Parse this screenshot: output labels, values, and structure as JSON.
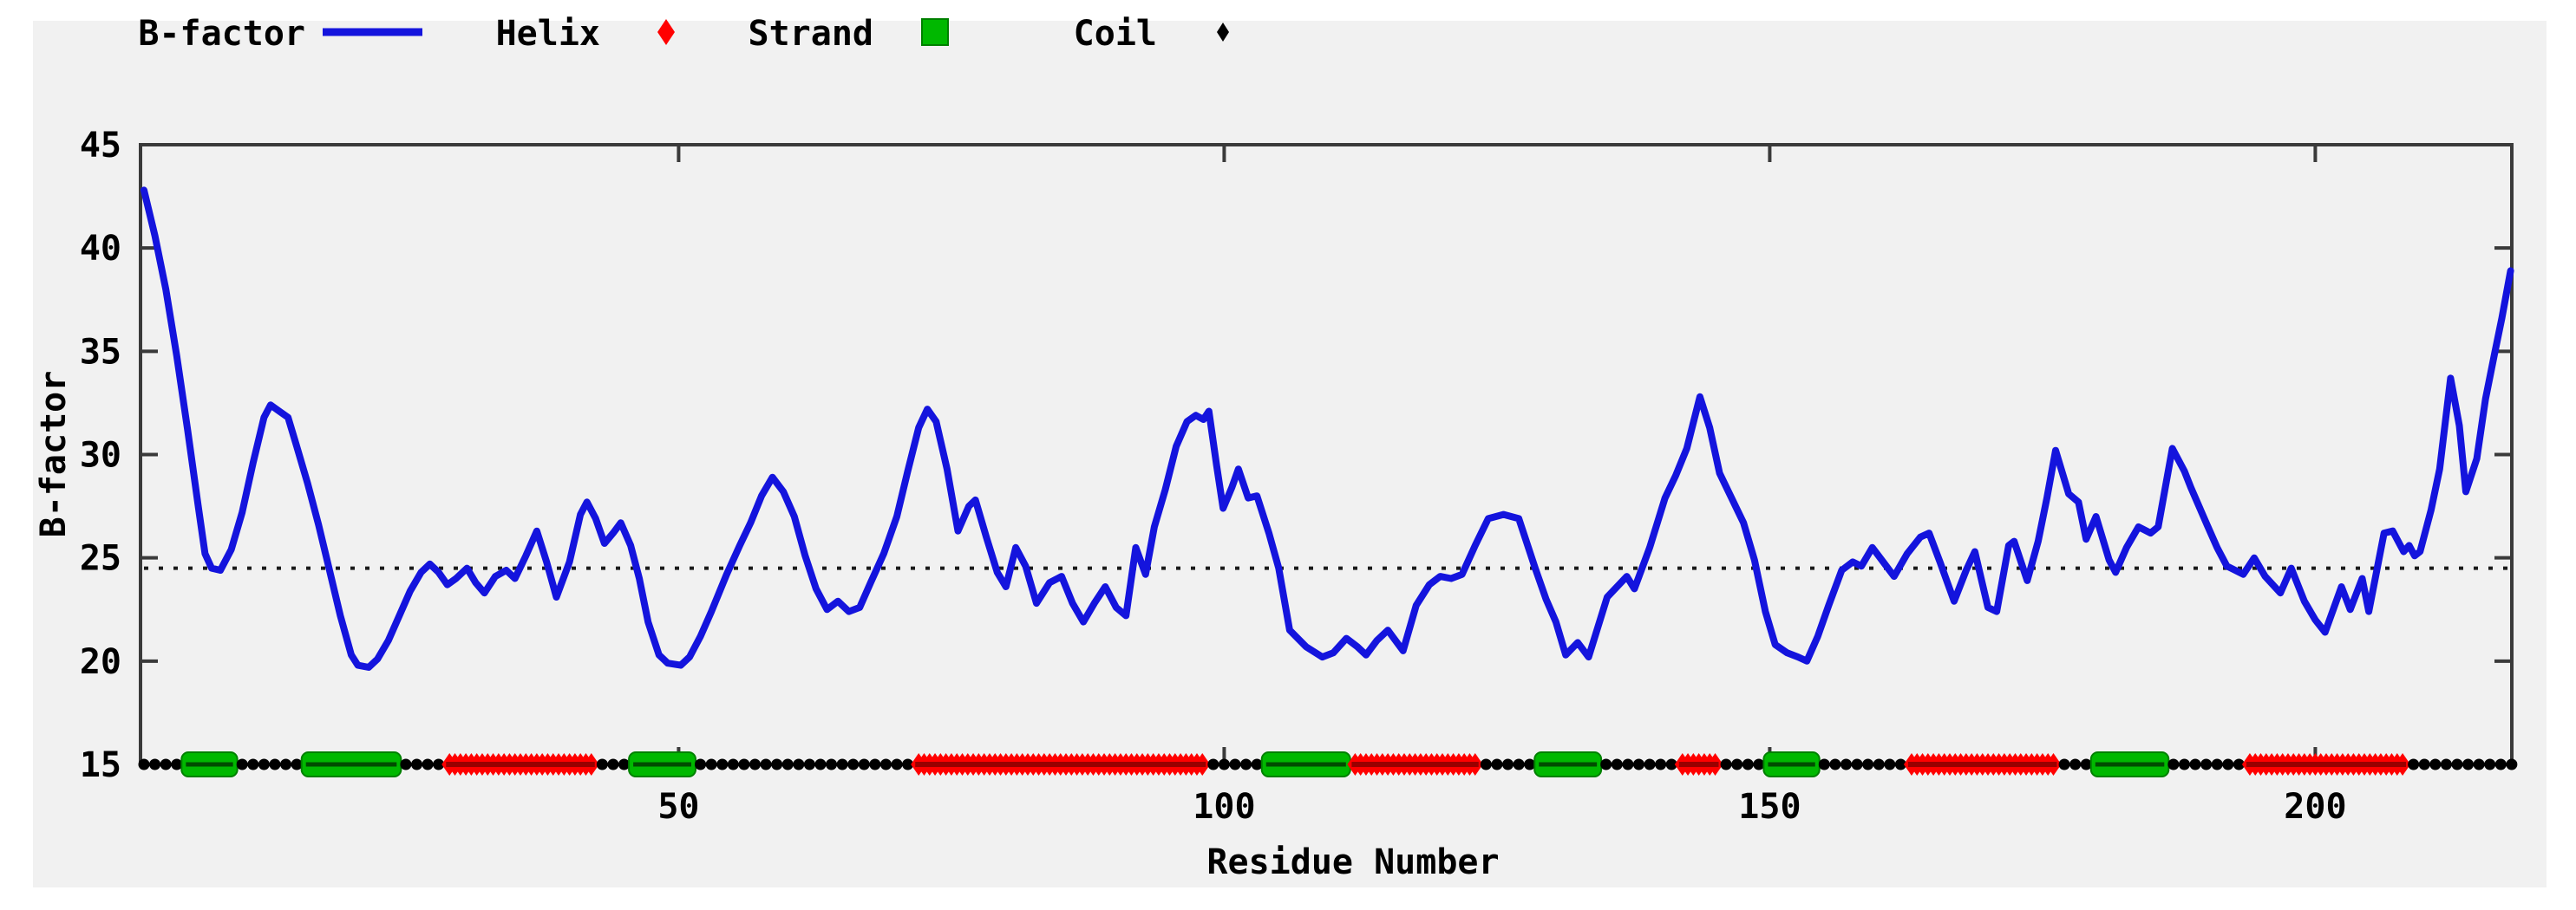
{
  "legend": {
    "items": [
      {
        "label": "B-factor",
        "marker": "line",
        "color": "#1414dd"
      },
      {
        "label": "Helix",
        "marker": "diamond",
        "color": "#ff0000"
      },
      {
        "label": "Strand",
        "marker": "square",
        "color": "#00b800"
      },
      {
        "label": "Coil",
        "marker": "dot",
        "color": "#000000"
      }
    ]
  },
  "axes": {
    "xlabel": "Residue Number",
    "ylabel": "B-factor",
    "yticks": [
      15,
      20,
      25,
      30,
      35,
      40,
      45
    ],
    "xticks": [
      50,
      100,
      150,
      200
    ]
  },
  "colors": {
    "curve": "#1414dd",
    "helix": "#ff0000",
    "helix_dark": "#990000",
    "strand": "#00b800",
    "strand_dark": "#004d00",
    "coil": "#000000",
    "border": "#3a3a3a",
    "panel_bg": "#f1f1f1",
    "mean_line": "#1a1a1a"
  },
  "chart_data": {
    "type": "line",
    "title": "",
    "xlabel": "Residue Number",
    "ylabel": "B-factor",
    "xlim": [
      1,
      218
    ],
    "ylim": [
      15,
      45
    ],
    "xticks": [
      50,
      100,
      150,
      200
    ],
    "yticks": [
      15,
      20,
      25,
      30,
      35,
      40,
      45
    ],
    "grid": false,
    "legend_position": "top-left",
    "average_line_y": 24.5,
    "series": [
      {
        "name": "B-factor",
        "points": [
          [
            1,
            42.8
          ],
          [
            2,
            40.6
          ],
          [
            3,
            38.0
          ],
          [
            4,
            34.8
          ],
          [
            5,
            31.2
          ],
          [
            6,
            27.4
          ],
          [
            6.6,
            25.2
          ],
          [
            7.2,
            24.5
          ],
          [
            8,
            24.4
          ],
          [
            9,
            25.4
          ],
          [
            10,
            27.2
          ],
          [
            11,
            29.6
          ],
          [
            12,
            31.8
          ],
          [
            12.6,
            32.4
          ],
          [
            13.4,
            32.1
          ],
          [
            14.2,
            31.8
          ],
          [
            15,
            30.4
          ],
          [
            16,
            28.6
          ],
          [
            17,
            26.6
          ],
          [
            18,
            24.4
          ],
          [
            19,
            22.2
          ],
          [
            20,
            20.3
          ],
          [
            20.6,
            19.8
          ],
          [
            21.6,
            19.7
          ],
          [
            22.4,
            20.1
          ],
          [
            23.4,
            21.0
          ],
          [
            24.4,
            22.2
          ],
          [
            25.4,
            23.4
          ],
          [
            26.4,
            24.3
          ],
          [
            27.2,
            24.7
          ],
          [
            28,
            24.3
          ],
          [
            28.8,
            23.7
          ],
          [
            29.6,
            24.0
          ],
          [
            30.6,
            24.5
          ],
          [
            31.4,
            23.8
          ],
          [
            32.2,
            23.3
          ],
          [
            33.2,
            24.1
          ],
          [
            34.2,
            24.4
          ],
          [
            35,
            24.0
          ],
          [
            36,
            25.1
          ],
          [
            37,
            26.3
          ],
          [
            37.9,
            24.8
          ],
          [
            38.8,
            23.1
          ],
          [
            40,
            24.8
          ],
          [
            41,
            27.1
          ],
          [
            41.6,
            27.7
          ],
          [
            42.4,
            26.9
          ],
          [
            43.2,
            25.7
          ],
          [
            44,
            26.2
          ],
          [
            44.7,
            26.7
          ],
          [
            45.6,
            25.6
          ],
          [
            46.4,
            24.0
          ],
          [
            47.2,
            21.9
          ],
          [
            48.2,
            20.3
          ],
          [
            49,
            19.9
          ],
          [
            50.2,
            19.8
          ],
          [
            51,
            20.2
          ],
          [
            52,
            21.2
          ],
          [
            53,
            22.4
          ],
          [
            54.4,
            24.2
          ],
          [
            55.6,
            25.6
          ],
          [
            56.6,
            26.7
          ],
          [
            57.6,
            28.0
          ],
          [
            58.6,
            28.9
          ],
          [
            59.6,
            28.2
          ],
          [
            60.6,
            27.0
          ],
          [
            61.6,
            25.1
          ],
          [
            62.6,
            23.5
          ],
          [
            63.6,
            22.5
          ],
          [
            64.6,
            22.9
          ],
          [
            65.6,
            22.4
          ],
          [
            66.6,
            22.6
          ],
          [
            67.6,
            23.8
          ],
          [
            68.8,
            25.2
          ],
          [
            70,
            27.0
          ],
          [
            71,
            29.2
          ],
          [
            72,
            31.3
          ],
          [
            72.8,
            32.2
          ],
          [
            73.6,
            31.6
          ],
          [
            74.6,
            29.3
          ],
          [
            75.6,
            26.3
          ],
          [
            76.6,
            27.5
          ],
          [
            77.2,
            27.8
          ],
          [
            78.2,
            26.0
          ],
          [
            79.2,
            24.3
          ],
          [
            80,
            23.6
          ],
          [
            80.9,
            25.5
          ],
          [
            81.8,
            24.6
          ],
          [
            82.8,
            22.8
          ],
          [
            84,
            23.8
          ],
          [
            85.1,
            24.1
          ],
          [
            86.1,
            22.8
          ],
          [
            87.1,
            21.9
          ],
          [
            88.1,
            22.8
          ],
          [
            89.1,
            23.6
          ],
          [
            90.1,
            22.6
          ],
          [
            91,
            22.2
          ],
          [
            91.9,
            25.5
          ],
          [
            92.8,
            24.2
          ],
          [
            93.6,
            26.5
          ],
          [
            94.6,
            28.3
          ],
          [
            95.6,
            30.4
          ],
          [
            96.6,
            31.6
          ],
          [
            97.4,
            31.9
          ],
          [
            98.1,
            31.7
          ],
          [
            98.6,
            32.1
          ],
          [
            99.3,
            29.5
          ],
          [
            99.9,
            27.4
          ],
          [
            100.7,
            28.4
          ],
          [
            101.3,
            29.3
          ],
          [
            102.2,
            27.9
          ],
          [
            103,
            28.0
          ],
          [
            104.1,
            26.2
          ],
          [
            105,
            24.5
          ],
          [
            106,
            21.5
          ],
          [
            107.5,
            20.7
          ],
          [
            109,
            20.2
          ],
          [
            110,
            20.4
          ],
          [
            111.2,
            21.1
          ],
          [
            112.2,
            20.7
          ],
          [
            113,
            20.3
          ],
          [
            114,
            21.0
          ],
          [
            115,
            21.5
          ],
          [
            116.4,
            20.5
          ],
          [
            117.6,
            22.7
          ],
          [
            118.8,
            23.7
          ],
          [
            119.8,
            24.1
          ],
          [
            120.8,
            24.0
          ],
          [
            121.8,
            24.2
          ],
          [
            123,
            25.6
          ],
          [
            124.2,
            26.9
          ],
          [
            125.6,
            27.1
          ],
          [
            127,
            26.9
          ],
          [
            128.5,
            24.5
          ],
          [
            129.5,
            23.0
          ],
          [
            130.4,
            21.9
          ],
          [
            131.3,
            20.3
          ],
          [
            132.4,
            20.9
          ],
          [
            133.4,
            20.2
          ],
          [
            135.1,
            23.1
          ],
          [
            136.9,
            24.1
          ],
          [
            137.6,
            23.5
          ],
          [
            139,
            25.5
          ],
          [
            140.4,
            27.9
          ],
          [
            141.4,
            29.0
          ],
          [
            142.4,
            30.3
          ],
          [
            143.6,
            32.8
          ],
          [
            144.5,
            31.3
          ],
          [
            145.4,
            29.1
          ],
          [
            146.5,
            27.9
          ],
          [
            147.6,
            26.7
          ],
          [
            148.6,
            24.9
          ],
          [
            149.6,
            22.4
          ],
          [
            150.5,
            20.8
          ],
          [
            151.6,
            20.4
          ],
          [
            152.6,
            20.2
          ],
          [
            153.4,
            20.0
          ],
          [
            154.4,
            21.2
          ],
          [
            155.4,
            22.7
          ],
          [
            156.6,
            24.4
          ],
          [
            157.6,
            24.8
          ],
          [
            158.4,
            24.6
          ],
          [
            159.4,
            25.5
          ],
          [
            160.4,
            24.8
          ],
          [
            161.4,
            24.1
          ],
          [
            162.6,
            25.2
          ],
          [
            163.8,
            26.0
          ],
          [
            164.6,
            26.2
          ],
          [
            165.6,
            24.8
          ],
          [
            166.9,
            22.9
          ],
          [
            168,
            24.4
          ],
          [
            168.8,
            25.3
          ],
          [
            170,
            22.6
          ],
          [
            170.8,
            22.4
          ],
          [
            171.9,
            25.6
          ],
          [
            172.4,
            25.8
          ],
          [
            173.6,
            23.9
          ],
          [
            174.6,
            25.8
          ],
          [
            175.4,
            27.9
          ],
          [
            176.2,
            30.2
          ],
          [
            177.4,
            28.1
          ],
          [
            178.3,
            27.7
          ],
          [
            179,
            25.9
          ],
          [
            179.9,
            27.0
          ],
          [
            181.1,
            24.9
          ],
          [
            181.7,
            24.3
          ],
          [
            182.7,
            25.5
          ],
          [
            183.8,
            26.5
          ],
          [
            184.9,
            26.2
          ],
          [
            185.6,
            26.5
          ],
          [
            186.9,
            30.3
          ],
          [
            188,
            29.2
          ],
          [
            188.6,
            28.4
          ],
          [
            190,
            26.7
          ],
          [
            191,
            25.5
          ],
          [
            191.9,
            24.6
          ],
          [
            193.4,
            24.2
          ],
          [
            194.4,
            25.0
          ],
          [
            195.4,
            24.1
          ],
          [
            196.8,
            23.3
          ],
          [
            197.8,
            24.5
          ],
          [
            199,
            22.9
          ],
          [
            200,
            22.0
          ],
          [
            200.9,
            21.4
          ],
          [
            202.4,
            23.6
          ],
          [
            203.2,
            22.5
          ],
          [
            204.3,
            24.0
          ],
          [
            204.9,
            22.4
          ],
          [
            206.3,
            26.2
          ],
          [
            207.1,
            26.3
          ],
          [
            208.1,
            25.3
          ],
          [
            208.6,
            25.6
          ],
          [
            209.1,
            25.1
          ],
          [
            209.6,
            25.3
          ],
          [
            210.6,
            27.3
          ],
          [
            211.4,
            29.3
          ],
          [
            212.4,
            33.7
          ],
          [
            213.2,
            31.4
          ],
          [
            213.8,
            28.2
          ],
          [
            214.8,
            29.8
          ],
          [
            215.6,
            32.7
          ],
          [
            216.4,
            34.8
          ],
          [
            217.1,
            36.6
          ],
          [
            217.9,
            38.9
          ]
        ]
      }
    ],
    "secondary_structure": [
      {
        "type": "coil",
        "start": 1,
        "end": 4
      },
      {
        "type": "strand",
        "start": 5,
        "end": 9
      },
      {
        "type": "coil",
        "start": 10,
        "end": 15
      },
      {
        "type": "strand",
        "start": 16,
        "end": 24
      },
      {
        "type": "coil",
        "start": 25,
        "end": 28
      },
      {
        "type": "helix",
        "start": 29,
        "end": 42
      },
      {
        "type": "coil",
        "start": 43,
        "end": 45
      },
      {
        "type": "strand",
        "start": 46,
        "end": 51
      },
      {
        "type": "coil",
        "start": 52,
        "end": 71
      },
      {
        "type": "helix",
        "start": 72,
        "end": 98
      },
      {
        "type": "coil",
        "start": 99,
        "end": 103
      },
      {
        "type": "strand",
        "start": 104,
        "end": 111
      },
      {
        "type": "helix",
        "start": 112,
        "end": 123
      },
      {
        "type": "coil",
        "start": 124,
        "end": 128
      },
      {
        "type": "strand",
        "start": 129,
        "end": 134
      },
      {
        "type": "coil",
        "start": 135,
        "end": 141
      },
      {
        "type": "helix",
        "start": 142,
        "end": 145
      },
      {
        "type": "coil",
        "start": 146,
        "end": 149
      },
      {
        "type": "strand",
        "start": 150,
        "end": 154
      },
      {
        "type": "coil",
        "start": 155,
        "end": 162
      },
      {
        "type": "helix",
        "start": 163,
        "end": 176
      },
      {
        "type": "coil",
        "start": 177,
        "end": 179
      },
      {
        "type": "strand",
        "start": 180,
        "end": 186
      },
      {
        "type": "coil",
        "start": 187,
        "end": 193
      },
      {
        "type": "helix",
        "start": 194,
        "end": 208
      },
      {
        "type": "coil",
        "start": 209,
        "end": 218
      }
    ]
  }
}
